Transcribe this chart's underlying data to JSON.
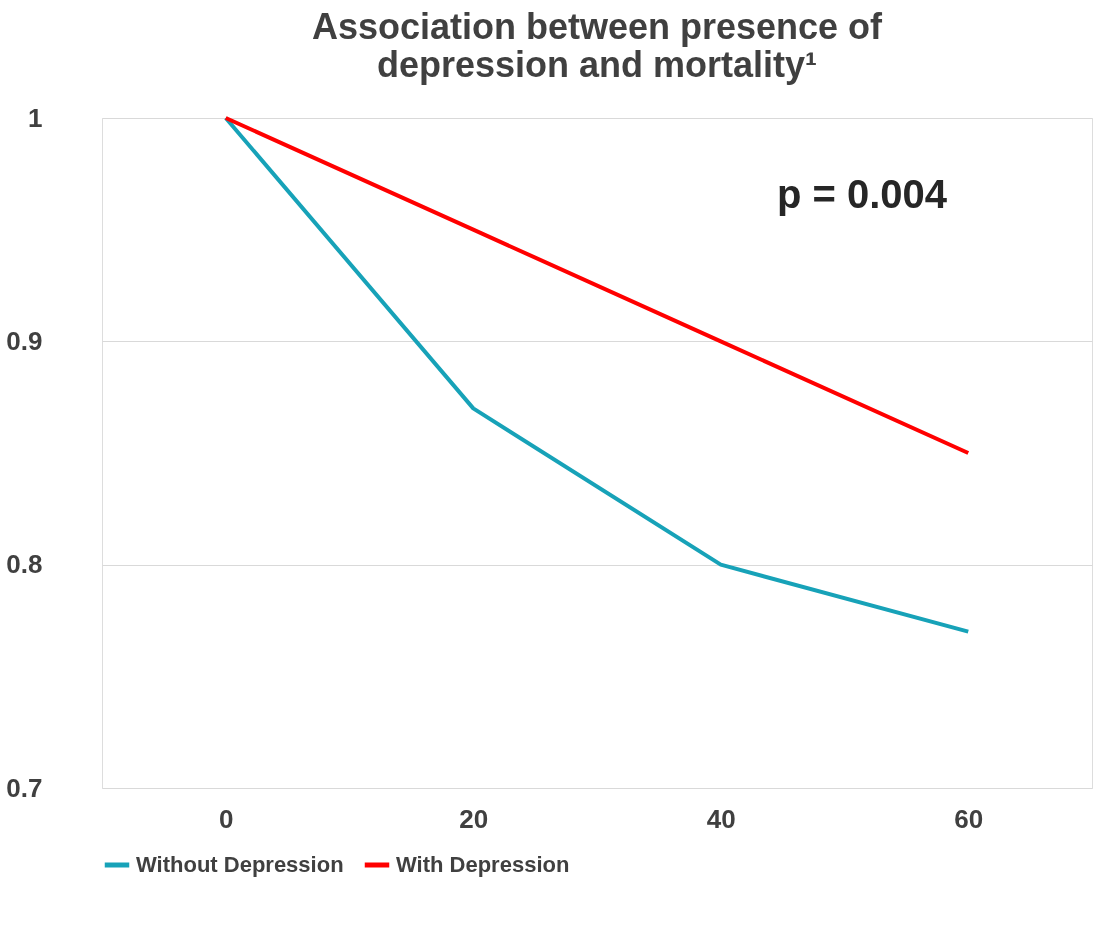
{
  "chart_data": {
    "type": "line",
    "title": "Association between presence of depression and mortality¹",
    "categories": [
      "0",
      "20",
      "40",
      "60"
    ],
    "series": [
      {
        "name": "Without Depression",
        "color": "#17a2b8",
        "values": [
          1,
          0.87,
          0.8,
          0.77
        ]
      },
      {
        "name": "With Depression",
        "color": "#ff0000",
        "values": [
          1,
          0.95,
          0.9,
          0.85
        ]
      }
    ],
    "ylim": [
      0.7,
      1
    ],
    "yticks": [
      0.7,
      0.8,
      0.9,
      1
    ],
    "grid": "y",
    "legend": "bottom",
    "line_style": "solid",
    "marker": "none",
    "annotations": [
      "p = 0.004"
    ]
  }
}
